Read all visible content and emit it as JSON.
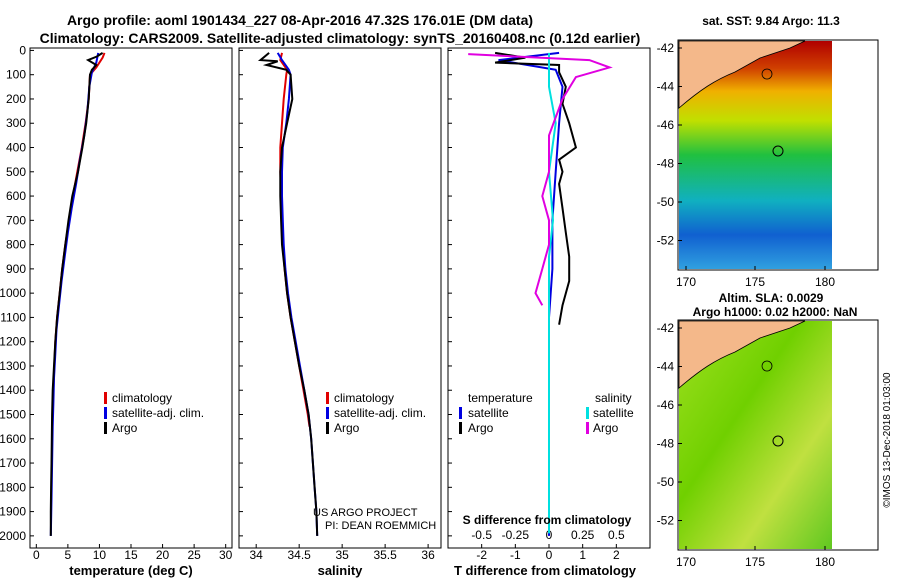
{
  "header": {
    "title_line1": "Argo profile: aoml 1901434_227 08-Apr-2016 47.32S 176.01E (DM data)",
    "title_line2": "Climatology: CARS2009. Satellite-adjusted climatology: synTS_20160408.nc (0.12d earlier)"
  },
  "colors": {
    "climatology": "#e00000",
    "satellite": "#0000e0",
    "argo": "#000000",
    "salinity_sat": "#00e0e0",
    "salinity_argo": "#e000e0"
  },
  "chart_data": [
    {
      "type": "line",
      "id": "temperature",
      "xlabel": "temperature (deg C)",
      "ylabel": "",
      "xlim": [
        -1,
        31
      ],
      "ylim": [
        2050,
        -10
      ],
      "xticks": [
        0,
        5,
        10,
        15,
        20,
        25,
        30
      ],
      "yticks": [
        0,
        100,
        200,
        300,
        400,
        500,
        600,
        700,
        800,
        900,
        1000,
        1100,
        1200,
        1300,
        1400,
        1500,
        1600,
        1700,
        1800,
        1900,
        2000
      ],
      "legend": [
        "climatology",
        "satellite-adj. clim.",
        "Argo"
      ],
      "series": [
        {
          "name": "climatology",
          "points": [
            [
              10.8,
              10
            ],
            [
              10.5,
              30
            ],
            [
              9.5,
              70
            ],
            [
              8.5,
              100
            ],
            [
              8.3,
              200
            ],
            [
              7.8,
              300
            ],
            [
              7.2,
              400
            ],
            [
              6.5,
              500
            ],
            [
              5.8,
              600
            ],
            [
              5.2,
              700
            ],
            [
              4.6,
              800
            ],
            [
              4.1,
              900
            ],
            [
              3.7,
              1000
            ],
            [
              3.3,
              1100
            ],
            [
              3.0,
              1200
            ],
            [
              2.85,
              1300
            ],
            [
              2.7,
              1400
            ],
            [
              2.6,
              1450
            ]
          ]
        },
        {
          "name": "satellite-adj. clim.",
          "points": [
            [
              9.8,
              10
            ],
            [
              9.5,
              50
            ],
            [
              8.8,
              90
            ],
            [
              8.4,
              150
            ],
            [
              8.1,
              250
            ],
            [
              7.6,
              350
            ],
            [
              6.9,
              450
            ],
            [
              6.3,
              550
            ],
            [
              5.6,
              650
            ],
            [
              5.0,
              750
            ],
            [
              4.5,
              850
            ],
            [
              4.0,
              950
            ],
            [
              3.6,
              1050
            ],
            [
              3.2,
              1150
            ],
            [
              3.0,
              1250
            ],
            [
              2.8,
              1350
            ],
            [
              2.7,
              1450
            ],
            [
              2.6,
              1550
            ],
            [
              2.5,
              1700
            ],
            [
              2.4,
              1850
            ],
            [
              2.3,
              2000
            ]
          ]
        },
        {
          "name": "Argo",
          "points": [
            [
              10.5,
              10
            ],
            [
              9.6,
              25
            ],
            [
              8.2,
              40
            ],
            [
              9.5,
              60
            ],
            [
              8.8,
              80
            ],
            [
              8.5,
              100
            ],
            [
              8.3,
              200
            ],
            [
              7.9,
              300
            ],
            [
              7.3,
              400
            ],
            [
              6.6,
              500
            ],
            [
              5.7,
              600
            ],
            [
              5.1,
              700
            ],
            [
              4.6,
              800
            ],
            [
              4.1,
              900
            ],
            [
              3.7,
              1000
            ],
            [
              3.3,
              1100
            ],
            [
              3.0,
              1200
            ],
            [
              2.8,
              1300
            ],
            [
              2.6,
              1400
            ],
            [
              2.5,
              1500
            ],
            [
              2.45,
              1600
            ],
            [
              2.4,
              1700
            ],
            [
              2.35,
              1800
            ],
            [
              2.3,
              1900
            ],
            [
              2.3,
              2000
            ]
          ]
        }
      ]
    },
    {
      "type": "line",
      "id": "salinity",
      "xlabel": "salinity",
      "xlim": [
        33.8,
        36.15
      ],
      "ylim": [
        2050,
        -10
      ],
      "xticks": [
        34,
        34.5,
        35,
        35.5,
        36
      ],
      "legend": [
        "climatology",
        "satellite-adj. clim.",
        "Argo"
      ],
      "annotation": [
        "US ARGO PROJECT",
        "PI: DEAN ROEMMICH"
      ],
      "series": [
        {
          "name": "climatology",
          "points": [
            [
              34.3,
              10
            ],
            [
              34.28,
              40
            ],
            [
              34.36,
              80
            ],
            [
              34.35,
              100
            ],
            [
              34.32,
              200
            ],
            [
              34.3,
              300
            ],
            [
              34.28,
              400
            ],
            [
              34.28,
              500
            ],
            [
              34.29,
              600
            ],
            [
              34.3,
              700
            ],
            [
              34.31,
              800
            ],
            [
              34.33,
              900
            ],
            [
              34.36,
              1000
            ],
            [
              34.4,
              1100
            ],
            [
              34.45,
              1200
            ],
            [
              34.5,
              1300
            ],
            [
              34.55,
              1400
            ],
            [
              34.6,
              1500
            ],
            [
              34.62,
              1550
            ]
          ]
        },
        {
          "name": "satellite-adj. clim.",
          "points": [
            [
              34.25,
              10
            ],
            [
              34.3,
              40
            ],
            [
              34.38,
              80
            ],
            [
              34.4,
              100
            ],
            [
              34.38,
              200
            ],
            [
              34.35,
              300
            ],
            [
              34.31,
              400
            ],
            [
              34.3,
              500
            ],
            [
              34.3,
              600
            ],
            [
              34.31,
              700
            ],
            [
              34.32,
              800
            ],
            [
              34.34,
              900
            ],
            [
              34.37,
              1000
            ],
            [
              34.41,
              1100
            ],
            [
              34.46,
              1200
            ],
            [
              34.51,
              1300
            ],
            [
              34.56,
              1400
            ],
            [
              34.61,
              1500
            ],
            [
              34.64,
              1600
            ],
            [
              34.66,
              1700
            ],
            [
              34.68,
              1800
            ],
            [
              34.7,
              1900
            ],
            [
              34.71,
              2000
            ]
          ]
        },
        {
          "name": "Argo",
          "points": [
            [
              34.15,
              10
            ],
            [
              34.05,
              40
            ],
            [
              34.25,
              45
            ],
            [
              34.12,
              60
            ],
            [
              34.35,
              80
            ],
            [
              34.4,
              100
            ],
            [
              34.42,
              200
            ],
            [
              34.36,
              300
            ],
            [
              34.3,
              400
            ],
            [
              34.28,
              500
            ],
            [
              34.28,
              600
            ],
            [
              34.29,
              700
            ],
            [
              34.3,
              800
            ],
            [
              34.33,
              900
            ],
            [
              34.36,
              1000
            ],
            [
              34.4,
              1100
            ],
            [
              34.45,
              1200
            ],
            [
              34.5,
              1300
            ],
            [
              34.56,
              1400
            ],
            [
              34.61,
              1500
            ],
            [
              34.64,
              1600
            ],
            [
              34.66,
              1700
            ],
            [
              34.68,
              1800
            ],
            [
              34.7,
              1900
            ],
            [
              34.71,
              2000
            ]
          ]
        }
      ]
    },
    {
      "type": "line",
      "id": "difference",
      "xlabel": "T difference from climatology",
      "xlabel2": "S difference from climatology",
      "xlim": [
        -3,
        3
      ],
      "ylim": [
        2050,
        -10
      ],
      "xticks": [
        -2,
        -1,
        0,
        1,
        2
      ],
      "xticks_s": [
        "-0.5",
        "-0.25",
        "0",
        "0.25",
        "0.5"
      ],
      "legend_temperature": [
        "temperature",
        "satellite",
        "Argo"
      ],
      "legend_salinity": [
        "salinity",
        "satellite",
        "Argo"
      ],
      "series": [
        {
          "name": "temperature satellite",
          "points": [
            [
              0.3,
              10
            ],
            [
              -1.5,
              40
            ],
            [
              0.2,
              80
            ],
            [
              0.4,
              150
            ],
            [
              0.3,
              300
            ],
            [
              0.2,
              500
            ],
            [
              0.1,
              700
            ],
            [
              0.1,
              900
            ],
            [
              0.0,
              1100
            ],
            [
              0.0,
              1300
            ],
            [
              0.0,
              1500
            ],
            [
              0.0,
              1700
            ],
            [
              0.0,
              1900
            ],
            [
              0.0,
              2000
            ]
          ]
        },
        {
          "name": "temperature Argo",
          "points": [
            [
              -1.6,
              10
            ],
            [
              -0.7,
              30
            ],
            [
              -1.6,
              50
            ],
            [
              0.3,
              60
            ],
            [
              0.3,
              90
            ],
            [
              0.5,
              150
            ],
            [
              0.4,
              220
            ],
            [
              0.6,
              300
            ],
            [
              0.8,
              400
            ],
            [
              0.3,
              450
            ],
            [
              0.4,
              500
            ],
            [
              0.3,
              550
            ],
            [
              0.4,
              650
            ],
            [
              0.5,
              750
            ],
            [
              0.6,
              850
            ],
            [
              0.6,
              950
            ],
            [
              0.4,
              1050
            ],
            [
              0.3,
              1130
            ]
          ]
        },
        {
          "name": "salinity satellite",
          "points": [
            [
              0.0,
              10
            ],
            [
              0.0,
              80
            ],
            [
              0.0,
              150
            ],
            [
              0.05,
              300
            ],
            [
              0.0,
              500
            ],
            [
              0.03,
              700
            ],
            [
              0.0,
              850
            ],
            [
              0.0,
              1000
            ],
            [
              0.0,
              1200
            ],
            [
              0.0,
              1400
            ],
            [
              0.0,
              1600
            ],
            [
              0.0,
              1800
            ],
            [
              0.0,
              1990
            ]
          ]
        },
        {
          "name": "salinity Argo",
          "points": [
            [
              -0.6,
              15
            ],
            [
              0.3,
              40
            ],
            [
              0.45,
              70
            ],
            [
              0.2,
              110
            ],
            [
              0.1,
              200
            ],
            [
              0.0,
              350
            ],
            [
              0.0,
              500
            ],
            [
              -0.05,
              600
            ],
            [
              0.0,
              700
            ],
            [
              0.0,
              800
            ],
            [
              -0.05,
              900
            ],
            [
              -0.1,
              1000
            ],
            [
              -0.05,
              1050
            ]
          ]
        }
      ]
    },
    {
      "type": "heatmap",
      "id": "sst-map",
      "title": "sat. SST: 9.84 Argo: 11.3",
      "xticks": [
        "170",
        "175",
        "180"
      ],
      "yticks": [
        "-42",
        "-44",
        "-46",
        "-48",
        "-50",
        "-52"
      ]
    },
    {
      "type": "heatmap",
      "id": "sla-map",
      "title": "Altim. SLA: 0.0029",
      "title2": "Argo h1000: 0.02 h2000: NaN",
      "xticks": [
        "170",
        "175",
        "180"
      ],
      "yticks": [
        "-42",
        "-44",
        "-46",
        "-48",
        "-50",
        "-52"
      ]
    }
  ],
  "footer": {
    "imos": "©IMOS 13-Dec-2018 01:03:00"
  }
}
